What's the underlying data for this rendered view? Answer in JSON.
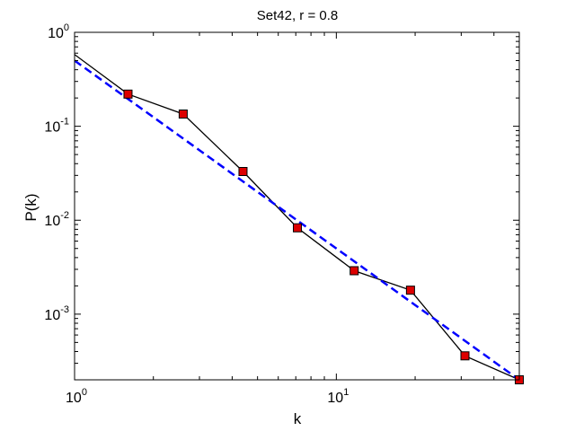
{
  "chart_data": {
    "type": "line",
    "title": "Set42, r = 0.8",
    "xlabel": "k",
    "ylabel": "P(k)",
    "xscale": "log",
    "yscale": "log",
    "xlim": [
      1,
      50
    ],
    "ylim": [
      0.0002,
      1
    ],
    "grid": false,
    "legend": "none",
    "x_ticks": [
      {
        "value": 1,
        "base": "10",
        "exp": "0"
      },
      {
        "value": 10,
        "base": "10",
        "exp": "1"
      }
    ],
    "y_ticks": [
      {
        "value": 1,
        "base": "10",
        "exp": "0"
      },
      {
        "value": 0.1,
        "base": "10",
        "exp": "-1"
      },
      {
        "value": 0.01,
        "base": "10",
        "exp": "-2"
      },
      {
        "value": 0.001,
        "base": "10",
        "exp": "-3"
      }
    ],
    "series": [
      {
        "style": "solid-black-with-red-square-markers",
        "color": "#000000",
        "marker_color": "#dd0000",
        "x": [
          1.0,
          1.6,
          2.6,
          4.4,
          7.1,
          11.7,
          19.2,
          31.0,
          50.0
        ],
        "y": [
          0.58,
          0.22,
          0.135,
          0.033,
          0.0083,
          0.0029,
          0.0018,
          0.00036,
          0.0002
        ],
        "markers": [
          false,
          true,
          true,
          true,
          true,
          true,
          true,
          true,
          true
        ]
      },
      {
        "style": "dashed-fit",
        "color": "#0000ff",
        "x": [
          1.0,
          50.0
        ],
        "y": [
          0.5,
          0.0002
        ]
      }
    ]
  }
}
